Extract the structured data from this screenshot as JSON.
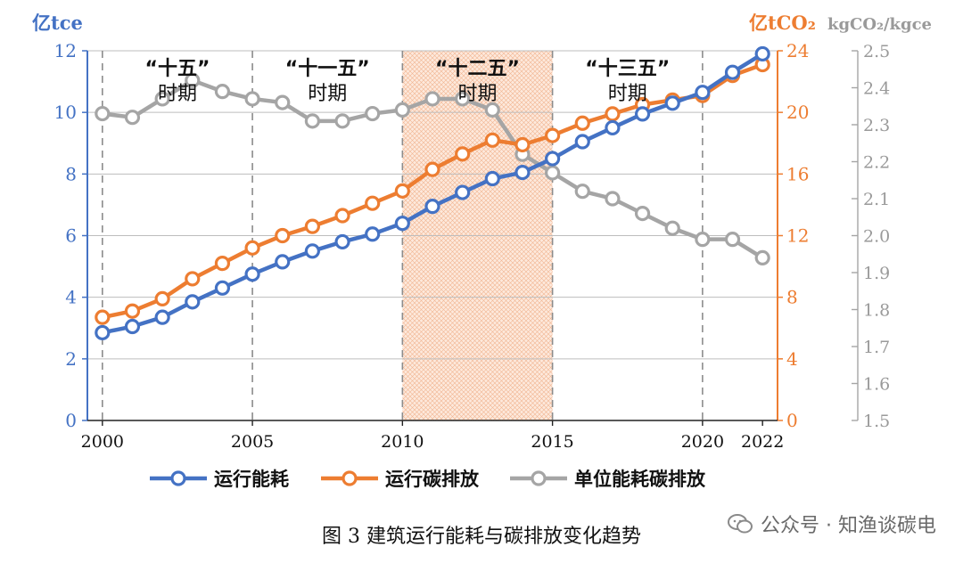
{
  "chart_data": {
    "type": "line",
    "caption": "图 3 建筑运行能耗与碳排放变化趋势",
    "x": [
      2000,
      2001,
      2002,
      2003,
      2004,
      2005,
      2006,
      2007,
      2008,
      2009,
      2010,
      2011,
      2012,
      2013,
      2014,
      2015,
      2016,
      2017,
      2018,
      2019,
      2020,
      2021,
      2022
    ],
    "x_ticks": [
      "2000",
      "2005",
      "2010",
      "2015",
      "2020",
      "2022"
    ],
    "x_tick_values": [
      2000,
      2005,
      2010,
      2015,
      2020,
      2022
    ],
    "xlim": [
      1999.5,
      2022.5
    ],
    "axes": {
      "left": {
        "unit_label": "亿tce",
        "ylim": [
          0,
          12
        ],
        "ticks": [
          "0",
          "2",
          "4",
          "6",
          "8",
          "10",
          "12"
        ],
        "color": "#4472C4"
      },
      "right1": {
        "unit_label": "亿tCO₂",
        "ylim": [
          0,
          24
        ],
        "ticks": [
          "0",
          "4",
          "8",
          "12",
          "16",
          "20",
          "24"
        ],
        "color": "#ED7D31"
      },
      "right2": {
        "unit_label": "kgCO₂/kgce",
        "ylim": [
          1.5,
          2.5
        ],
        "ticks": [
          "1.5",
          "1.6",
          "1.7",
          "1.8",
          "1.9",
          "2.0",
          "2.1",
          "2.2",
          "2.3",
          "2.4",
          "2.5"
        ],
        "color": "#A5A5A5"
      }
    },
    "series": [
      {
        "name": "运行能耗",
        "axis": "left",
        "color": "#4472C4",
        "values": [
          2.85,
          3.05,
          3.35,
          3.85,
          4.3,
          4.75,
          5.15,
          5.5,
          5.8,
          6.05,
          6.4,
          6.95,
          7.4,
          7.85,
          8.05,
          8.5,
          9.05,
          9.5,
          9.95,
          10.3,
          10.65,
          11.3,
          11.9
        ]
      },
      {
        "name": "运行碳排放",
        "axis": "right1",
        "color": "#ED7D31",
        "values": [
          6.7,
          7.1,
          7.9,
          9.2,
          10.2,
          11.2,
          12.0,
          12.6,
          13.3,
          14.1,
          14.9,
          16.3,
          17.3,
          18.2,
          17.9,
          18.5,
          19.3,
          19.9,
          20.5,
          20.8,
          21.1,
          22.4,
          23.1
        ]
      },
      {
        "name": "单位能耗碳排放",
        "axis": "right2",
        "color": "#A5A5A5",
        "values": [
          2.33,
          2.32,
          2.37,
          2.42,
          2.39,
          2.37,
          2.36,
          2.31,
          2.31,
          2.33,
          2.34,
          2.37,
          2.37,
          2.34,
          2.22,
          2.17,
          2.12,
          2.1,
          2.06,
          2.02,
          1.99,
          1.99,
          1.94
        ]
      }
    ],
    "periods": [
      {
        "label_line1": "“十五”",
        "label_line2": "时期",
        "start": 2000,
        "end": 2005,
        "highlight": false
      },
      {
        "label_line1": "“十一五”",
        "label_line2": "时期",
        "start": 2005,
        "end": 2010,
        "highlight": false
      },
      {
        "label_line1": "“十二五”",
        "label_line2": "时期",
        "start": 2010,
        "end": 2015,
        "highlight": true
      },
      {
        "label_line1": "“十三五”",
        "label_line2": "时期",
        "start": 2015,
        "end": 2020,
        "highlight": false
      }
    ],
    "period_dividers": [
      2000,
      2005,
      2010,
      2015,
      2020
    ],
    "grid": true,
    "legend_position": "bottom"
  },
  "watermark": {
    "text": "公众号 · 知渔谈碳电",
    "icon": "wechat-icon"
  }
}
